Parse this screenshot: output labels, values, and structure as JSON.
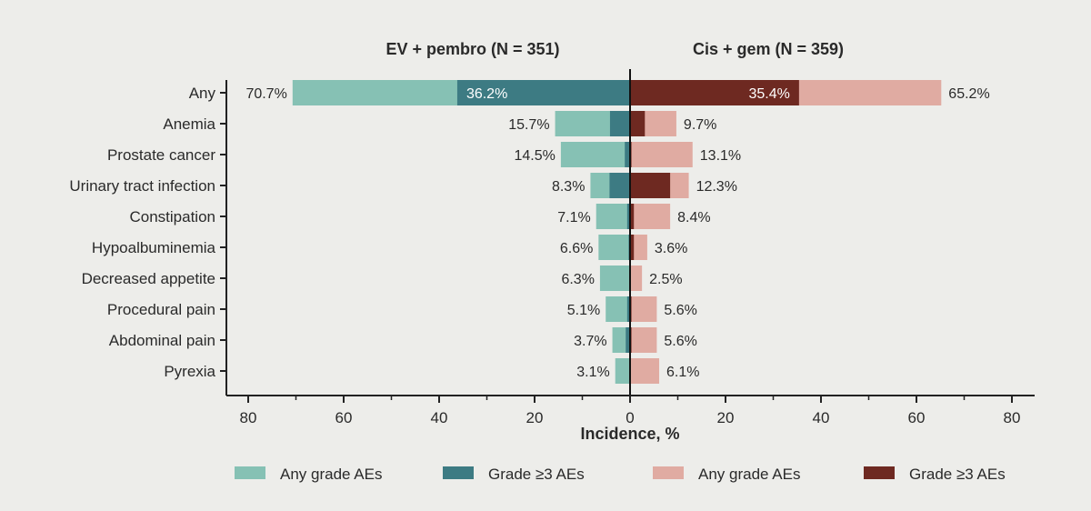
{
  "chart_data": {
    "type": "bar",
    "orientation": "horizontal-butterfly",
    "left_title": "EV + pembro (N = 351)",
    "right_title": "Cis + gem (N = 359)",
    "xlabel": "Incidence, %",
    "xlim": [
      0,
      80
    ],
    "x_ticks": [
      "80",
      "60",
      "40",
      "20",
      "0",
      "20",
      "40",
      "60",
      "80"
    ],
    "categories": [
      "Any",
      "Anemia",
      "Prostate cancer",
      "Urinary tract infection",
      "Constipation",
      "Hypoalbuminemia",
      "Decreased appetite",
      "Procedural pain",
      "Abdominal pain",
      "Pyrexia"
    ],
    "series": [
      {
        "name": "Any grade AEs",
        "side": "left",
        "color": "#86c1b4",
        "values": [
          70.7,
          15.7,
          14.5,
          8.3,
          7.1,
          6.6,
          6.3,
          5.1,
          3.7,
          3.1
        ],
        "labels": [
          "70.7%",
          "15.7%",
          "14.5%",
          "8.3%",
          "7.1%",
          "6.6%",
          "6.3%",
          "5.1%",
          "3.7%",
          "3.1%"
        ]
      },
      {
        "name": "Grade ≥3 AEs",
        "side": "left",
        "color": "#3d7b83",
        "values": [
          36.2,
          4.2,
          1.1,
          4.3,
          0.6,
          0.3,
          0.0,
          0.6,
          0.9,
          0.0
        ],
        "labels": [
          "36.2%",
          "",
          "",
          "",
          "",
          "",
          "",
          "",
          "",
          ""
        ]
      },
      {
        "name": "Any grade AEs",
        "side": "right",
        "color": "#e0aba2",
        "values": [
          65.2,
          9.7,
          13.1,
          12.3,
          8.4,
          3.6,
          2.5,
          5.6,
          5.6,
          6.1
        ],
        "labels": [
          "65.2%",
          "9.7%",
          "13.1%",
          "12.3%",
          "8.4%",
          "3.6%",
          "2.5%",
          "5.6%",
          "5.6%",
          "6.1%"
        ]
      },
      {
        "name": "Grade ≥3 AEs",
        "side": "right",
        "color": "#6e2921",
        "values": [
          35.4,
          3.1,
          0.3,
          8.4,
          0.8,
          0.8,
          0.0,
          0.3,
          0.3,
          0.0
        ],
        "labels": [
          "35.4%",
          "",
          "",
          "",
          "",
          "",
          "",
          "",
          "",
          ""
        ]
      }
    ],
    "legend_position": "bottom"
  }
}
